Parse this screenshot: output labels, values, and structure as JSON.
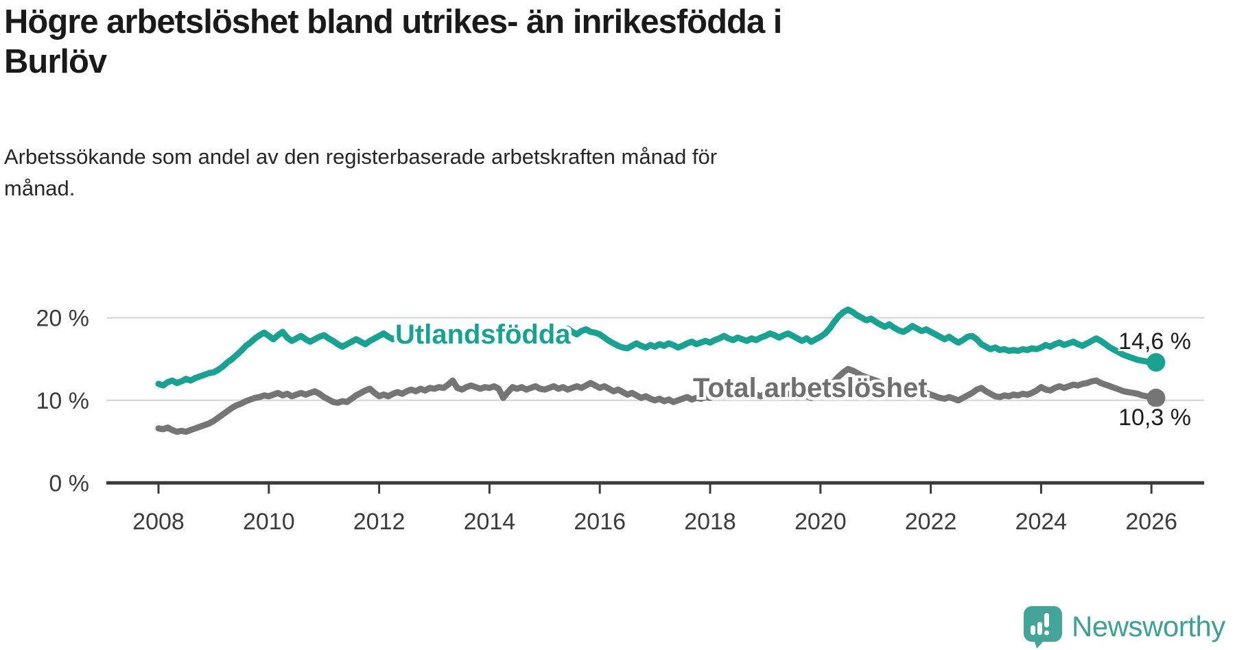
{
  "header": {
    "title": "Högre arbetslöshet bland utrikes- än inrikesfödda i\nBurlöv",
    "subtitle": "Arbetssökande som andel av den registerbaserade arbetskraften månad för\nmånad."
  },
  "branding": {
    "logo_text": "Newsworthy",
    "brand_color": "#45a49a"
  },
  "chart_data": {
    "type": "line",
    "title": "Högre arbetslöshet bland utrikes- än inrikesfödda i Burlöv",
    "subtitle": "Arbetssökande som andel av den registerbaserade arbetskraften månad för månad.",
    "xlabel": "",
    "ylabel": "",
    "grid": "horizontal",
    "x_start_year": 2008,
    "x_step_months": 1,
    "x_end": "2026-02",
    "x_ticks": [
      2008,
      2010,
      2012,
      2014,
      2016,
      2018,
      2020,
      2022,
      2024,
      2026
    ],
    "y_ticks": [
      {
        "label": "0 %",
        "value": 0
      },
      {
        "label": "10 %",
        "value": 10
      },
      {
        "label": "20 %",
        "value": 20
      }
    ],
    "ylim": [
      0,
      22.5
    ],
    "series": [
      {
        "name": "Utlandsfödda",
        "color": "#1aa192",
        "end_label": "14,6 %",
        "end_value": 14.6,
        "values": [
          12.0,
          11.8,
          12.2,
          12.4,
          12.1,
          12.3,
          12.6,
          12.4,
          12.7,
          12.9,
          13.1,
          13.3,
          13.4,
          13.7,
          14.1,
          14.6,
          15.0,
          15.5,
          16.0,
          16.6,
          17.0,
          17.5,
          17.9,
          18.2,
          17.8,
          17.4,
          17.9,
          18.3,
          17.6,
          17.2,
          17.5,
          17.8,
          17.4,
          17.1,
          17.4,
          17.7,
          17.9,
          17.5,
          17.2,
          16.8,
          16.5,
          16.8,
          17.1,
          17.4,
          17.1,
          16.8,
          17.2,
          17.5,
          17.8,
          18.1,
          17.7,
          17.4,
          17.7,
          17.3,
          17.0,
          17.3,
          17.6,
          17.4,
          17.7,
          17.9,
          17.6,
          17.9,
          18.2,
          17.8,
          17.5,
          17.8,
          18.1,
          17.8,
          18.0,
          18.3,
          18.0,
          17.7,
          18.0,
          18.3,
          18.6,
          18.2,
          17.9,
          18.2,
          17.8,
          17.5,
          17.9,
          18.2,
          17.9,
          18.1,
          18.4,
          18.1,
          17.8,
          18.1,
          18.4,
          18.7,
          18.3,
          18.0,
          18.4,
          18.6,
          18.3,
          18.2,
          18.0,
          17.6,
          17.2,
          16.9,
          16.6,
          16.4,
          16.3,
          16.6,
          16.9,
          16.6,
          16.4,
          16.7,
          16.5,
          16.8,
          16.6,
          16.9,
          16.7,
          16.4,
          16.6,
          16.9,
          17.1,
          16.8,
          17.0,
          17.2,
          17.0,
          17.3,
          17.5,
          17.8,
          17.5,
          17.3,
          17.6,
          17.4,
          17.2,
          17.5,
          17.3,
          17.6,
          17.8,
          18.1,
          17.9,
          17.6,
          17.9,
          18.1,
          17.8,
          17.5,
          17.2,
          17.5,
          17.1,
          17.4,
          17.7,
          18.1,
          18.7,
          19.5,
          20.2,
          20.7,
          21.0,
          20.7,
          20.3,
          20.0,
          19.7,
          19.9,
          19.5,
          19.2,
          18.9,
          19.2,
          18.8,
          18.5,
          18.3,
          18.6,
          19.0,
          18.7,
          18.4,
          18.6,
          18.3,
          18.0,
          17.7,
          17.4,
          17.7,
          17.3,
          17.0,
          17.3,
          17.7,
          17.8,
          17.4,
          16.8,
          16.5,
          16.2,
          16.4,
          16.1,
          16.2,
          16.0,
          16.1,
          16.0,
          16.2,
          16.1,
          16.3,
          16.2,
          16.4,
          16.7,
          16.5,
          16.8,
          17.0,
          16.7,
          16.9,
          17.1,
          16.8,
          16.6,
          16.9,
          17.2,
          17.5,
          17.2,
          16.8,
          16.4,
          16.1,
          15.8,
          15.5,
          15.3,
          15.1,
          14.9,
          14.8,
          14.7,
          14.6,
          14.6
        ]
      },
      {
        "name": "Total arbetslöshet",
        "color": "#757575",
        "end_label": "10,3 %",
        "end_value": 10.3,
        "values": [
          6.6,
          6.5,
          6.7,
          6.4,
          6.2,
          6.3,
          6.2,
          6.4,
          6.6,
          6.8,
          7.0,
          7.2,
          7.5,
          7.9,
          8.3,
          8.7,
          9.1,
          9.4,
          9.6,
          9.9,
          10.1,
          10.3,
          10.4,
          10.6,
          10.5,
          10.7,
          10.9,
          10.6,
          10.8,
          10.5,
          10.7,
          10.9,
          10.7,
          10.9,
          11.1,
          10.8,
          10.4,
          10.1,
          9.8,
          9.7,
          9.9,
          9.8,
          10.2,
          10.6,
          10.9,
          11.2,
          11.4,
          10.9,
          10.5,
          10.7,
          10.5,
          10.8,
          11.0,
          10.8,
          11.1,
          11.3,
          11.1,
          11.4,
          11.2,
          11.5,
          11.4,
          11.6,
          11.5,
          11.9,
          12.4,
          11.5,
          11.3,
          11.6,
          11.8,
          11.6,
          11.4,
          11.6,
          11.5,
          11.7,
          11.4,
          10.3,
          11.0,
          11.6,
          11.4,
          11.6,
          11.3,
          11.5,
          11.7,
          11.4,
          11.3,
          11.5,
          11.7,
          11.4,
          11.6,
          11.3,
          11.5,
          11.7,
          11.5,
          11.8,
          12.1,
          11.8,
          11.5,
          11.7,
          11.4,
          11.1,
          11.3,
          11.0,
          10.7,
          10.9,
          10.6,
          10.3,
          10.5,
          10.2,
          10.0,
          10.2,
          9.9,
          10.1,
          9.8,
          10.0,
          10.2,
          10.4,
          10.1,
          10.3,
          10.2,
          10.4,
          10.3,
          10.5,
          10.4,
          10.6,
          10.4,
          10.7,
          10.5,
          10.8,
          10.6,
          10.9,
          10.7,
          10.5,
          10.8,
          10.6,
          10.9,
          10.7,
          11.0,
          10.8,
          10.6,
          10.4,
          10.7,
          10.5,
          10.3,
          10.6,
          10.8,
          11.1,
          11.7,
          12.3,
          12.9,
          13.4,
          13.8,
          13.6,
          13.3,
          13.0,
          12.8,
          12.6,
          12.4,
          12.2,
          12.0,
          11.8,
          11.6,
          11.4,
          11.2,
          11.0,
          11.1,
          11.3,
          11.1,
          10.9,
          10.7,
          10.5,
          10.3,
          10.2,
          10.4,
          10.2,
          10.0,
          10.3,
          10.6,
          10.9,
          11.3,
          11.5,
          11.1,
          10.8,
          10.5,
          10.4,
          10.6,
          10.5,
          10.7,
          10.6,
          10.8,
          10.7,
          10.9,
          11.2,
          11.6,
          11.3,
          11.2,
          11.5,
          11.7,
          11.5,
          11.7,
          11.9,
          11.8,
          12.0,
          12.1,
          12.3,
          12.4,
          12.1,
          11.9,
          11.7,
          11.5,
          11.3,
          11.1,
          11.0,
          10.9,
          10.8,
          10.6,
          10.5,
          10.4,
          10.3
        ]
      }
    ]
  }
}
